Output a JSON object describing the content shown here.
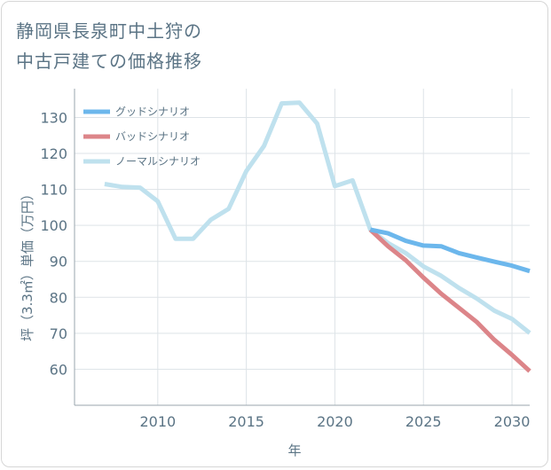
{
  "title": {
    "line1": "静岡県長泉町中土狩の",
    "line2": "中古戸建ての価格推移"
  },
  "chart_data": {
    "type": "line",
    "title": "静岡県長泉町中土狩の中古戸建ての価格推移",
    "xlabel": "年",
    "ylabel": "坪（3.3㎡）単価（万円）",
    "xlim": [
      2005.3,
      2031
    ],
    "ylim": [
      50,
      138
    ],
    "x_ticks": [
      2010,
      2015,
      2020,
      2025,
      2030
    ],
    "y_ticks": [
      60,
      70,
      80,
      90,
      100,
      110,
      120,
      130
    ],
    "grid": true,
    "legend_position": "top-left",
    "series": [
      {
        "name": "グッドシナリオ",
        "color": "#6cb7ec",
        "x": [
          2022,
          2023,
          2024,
          2025,
          2026,
          2027,
          2028,
          2029,
          2030,
          2031
        ],
        "values": [
          98.8,
          97.8,
          95.7,
          94.4,
          94.2,
          92.3,
          91.1,
          89.9,
          88.8,
          87.3
        ]
      },
      {
        "name": "バッドシナリオ",
        "color": "#dc8589",
        "x": [
          2022,
          2023,
          2024,
          2025,
          2026,
          2027,
          2028,
          2029,
          2030,
          2031
        ],
        "values": [
          98.8,
          94.2,
          90.3,
          85.5,
          81.0,
          77.1,
          73.2,
          68.2,
          64.0,
          59.5
        ]
      },
      {
        "name": "ノーマルシナリオ",
        "color": "#bfe1ee",
        "x": [
          2007,
          2008,
          2009,
          2010,
          2011,
          2012,
          2013,
          2014,
          2015,
          2016,
          2017,
          2018,
          2019,
          2020,
          2021,
          2022,
          2023,
          2024,
          2025,
          2026,
          2027,
          2028,
          2029,
          2030,
          2031
        ],
        "values": [
          111.5,
          110.7,
          110.5,
          106.7,
          96.3,
          96.3,
          101.6,
          104.6,
          115.1,
          122.1,
          133.9,
          134.1,
          128.3,
          110.9,
          112.5,
          98.8,
          95.1,
          92.3,
          88.6,
          86.0,
          82.6,
          79.7,
          76.3,
          74.0,
          70.1
        ]
      }
    ]
  }
}
